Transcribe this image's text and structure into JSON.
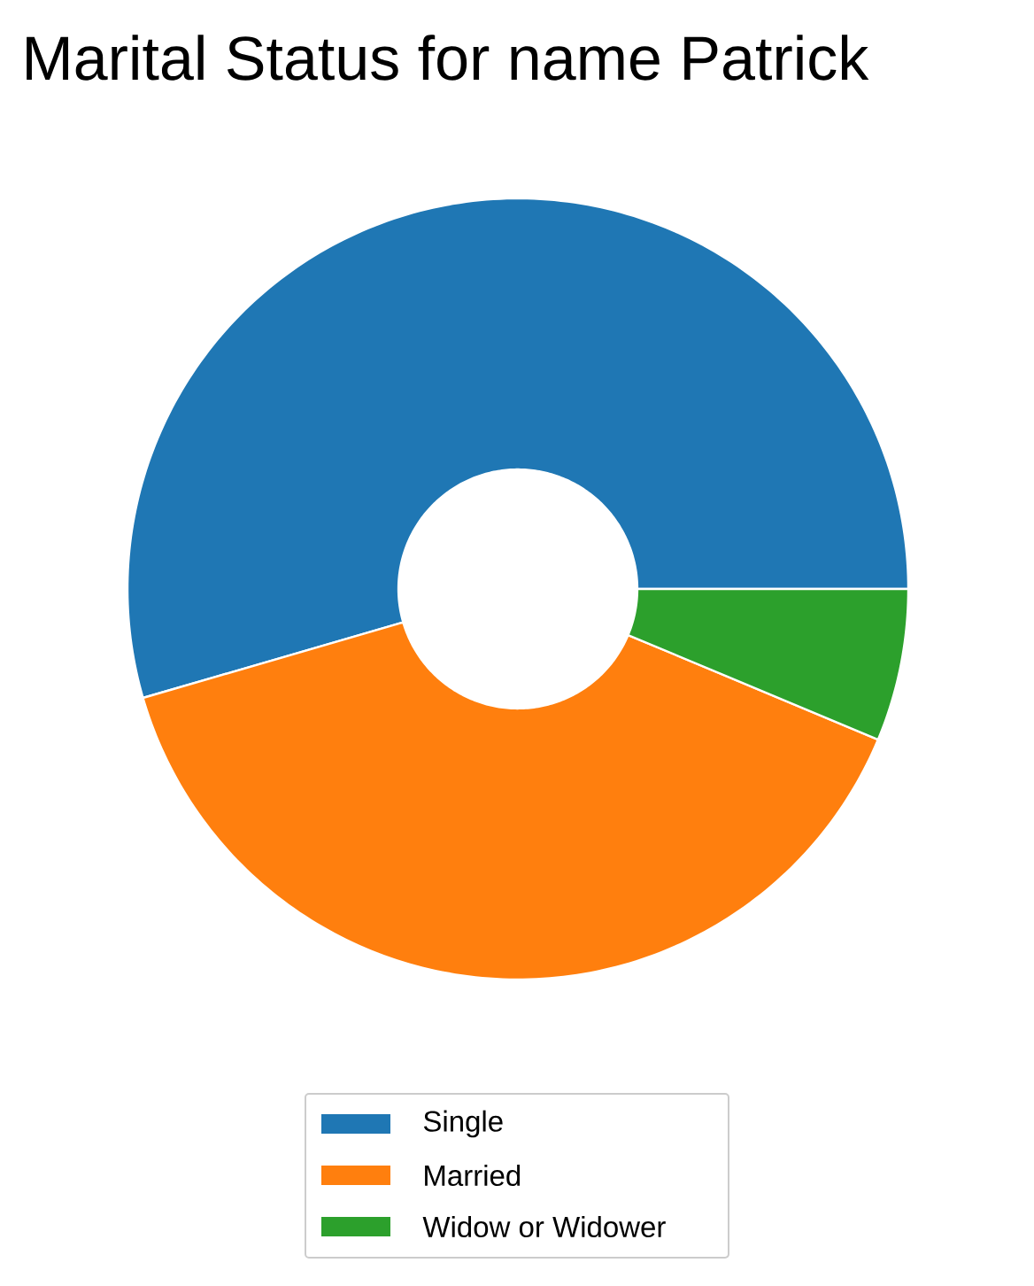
{
  "chart_data": {
    "type": "donut",
    "title": "Marital Status for name Patrick",
    "categories": [
      "Single",
      "Married",
      "Widow or Widower"
    ],
    "values": [
      54.5,
      39.2,
      6.3
    ],
    "colors": [
      "#1f77b4",
      "#ff7f0e",
      "#2ca02c"
    ],
    "legend": "bottom"
  }
}
